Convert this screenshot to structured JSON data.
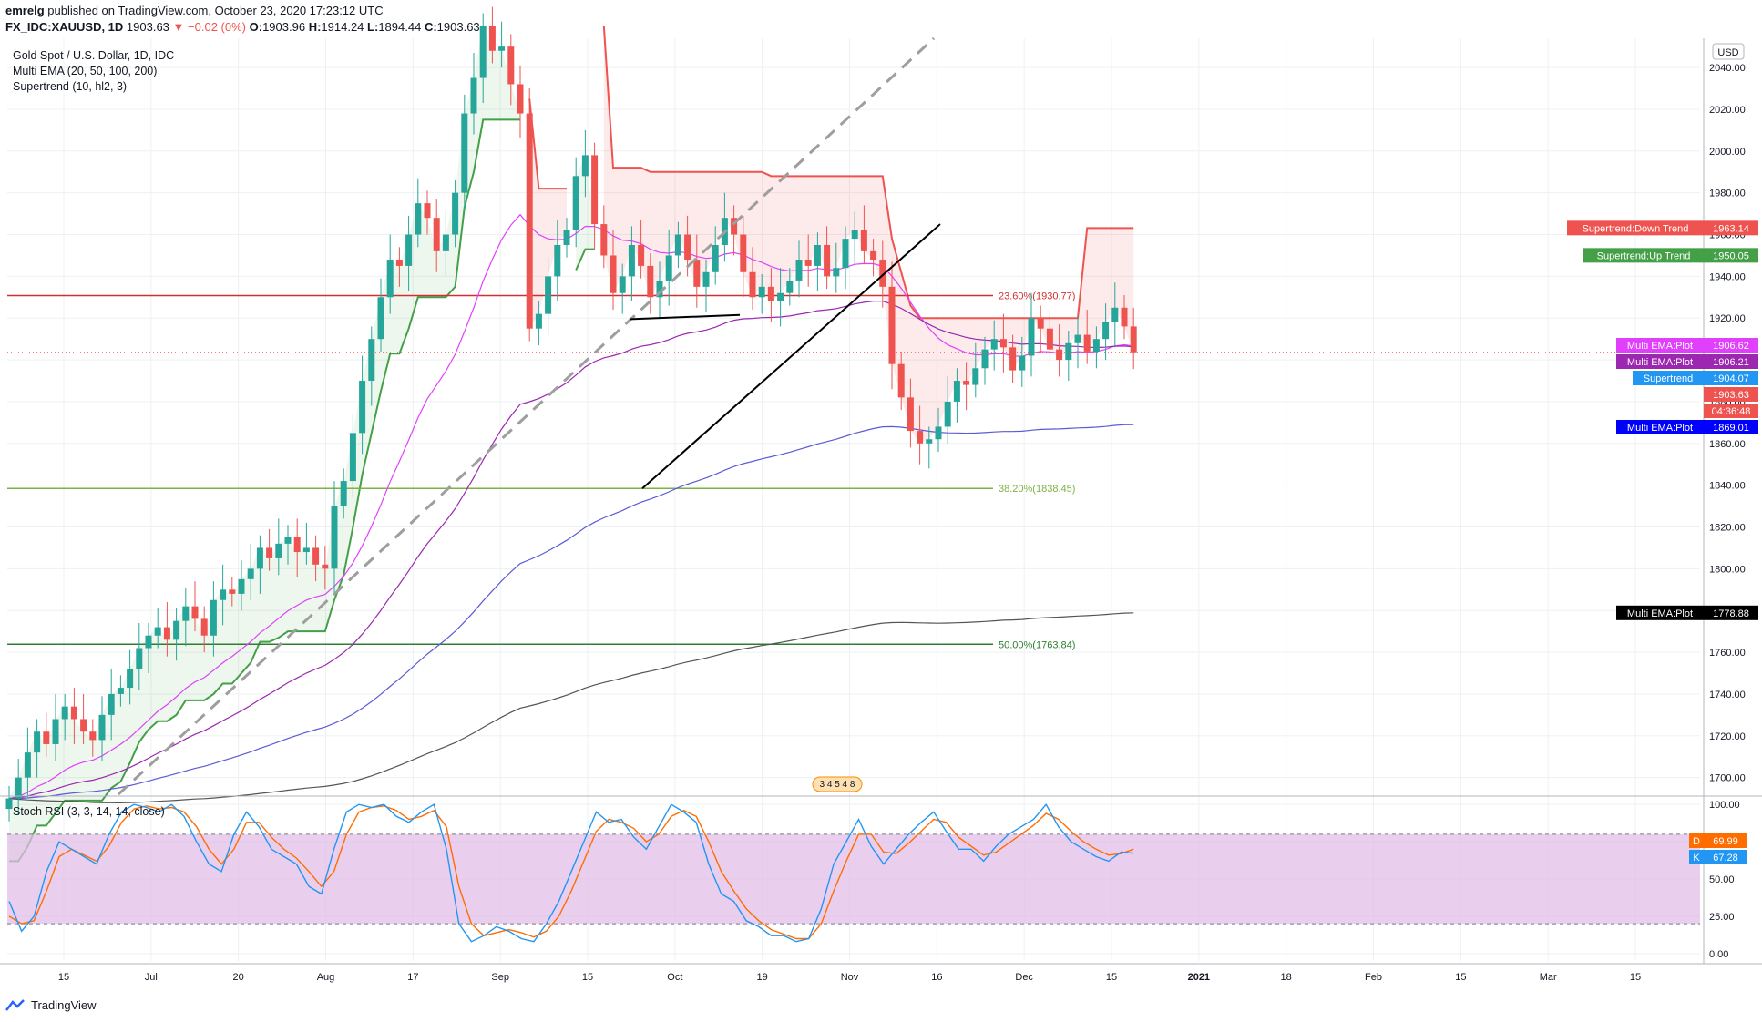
{
  "header": {
    "line1_user": "emrelg",
    "line1_text": "published on TradingView.com, October 23, 2020 17:23:12 UTC",
    "symbol": "FX_IDC:XAUUSD, 1D",
    "open": "1903.63",
    "change": "▼ −0.02 (0%)",
    "o": "1903.96",
    "h": "1914.24",
    "l": "1894.44",
    "c": "1903.63"
  },
  "legend": {
    "title": "Gold Spot / U.S. Dollar, 1D, IDC",
    "ema": "Multi EMA (20, 50, 100, 200)",
    "supertrend": "Supertrend (10, hl2, 3)",
    "stoch": "Stoch RSI (3, 3, 14, 14, close)"
  },
  "footer": {
    "brand": "TradingView"
  },
  "colors": {
    "up": "#26a69a",
    "down": "#ef5350",
    "ema20": "#e040fb",
    "ema50": "#9c27b0",
    "ema100": "#5b5bd6",
    "ema200": "#555555",
    "st_up": "#43a047",
    "st_down": "#ef5350",
    "fib236": "#d32f2f",
    "fib382": "#7cb342",
    "fib50": "#2e7d32",
    "stoch_k": "#2196f3",
    "stoch_d": "#ff6d00",
    "stoch_band": "#e1bee7"
  },
  "chart_data": [
    {
      "type": "candlestick",
      "title": "Gold Spot / U.S. Dollar, 1D, IDC",
      "currency": "USD",
      "ylim": [
        1692,
        2054
      ],
      "y_ticks": [
        1700,
        1720,
        1740,
        1760,
        1780,
        1800,
        1820,
        1840,
        1860,
        1880,
        1900,
        1920,
        1940,
        1960,
        1980,
        2000,
        2020,
        2040
      ],
      "x_ticks": [
        "15",
        "Jul",
        "20",
        "Aug",
        "17",
        "Sep",
        "15",
        "Oct",
        "19",
        "Nov",
        "16",
        "Dec",
        "15",
        "2021",
        "18",
        "Feb",
        "15",
        "Mar",
        "15"
      ],
      "close": [
        1690,
        1700,
        1712,
        1722,
        1716,
        1728,
        1734,
        1728,
        1722,
        1718,
        1730,
        1740,
        1743,
        1752,
        1762,
        1768,
        1772,
        1766,
        1775,
        1782,
        1776,
        1768,
        1785,
        1790,
        1788,
        1795,
        1800,
        1810,
        1805,
        1812,
        1815,
        1808,
        1810,
        1802,
        1800,
        1830,
        1842,
        1865,
        1890,
        1910,
        1930,
        1948,
        1945,
        1960,
        1975,
        1968,
        1952,
        1960,
        1980,
        2018,
        2035,
        2060,
        2048,
        2050,
        2032,
        2018,
        1915,
        1922,
        1940,
        1955,
        1962,
        1988,
        1998,
        1965,
        1950,
        1932,
        1940,
        1955,
        1945,
        1930,
        1938,
        1950,
        1960,
        1948,
        1935,
        1942,
        1955,
        1968,
        1960,
        1942,
        1930,
        1935,
        1928,
        1932,
        1938,
        1948,
        1945,
        1955,
        1940,
        1944,
        1958,
        1962,
        1952,
        1948,
        1935,
        1898,
        1882,
        1866,
        1860,
        1862,
        1868,
        1880,
        1890,
        1888,
        1896,
        1905,
        1910,
        1906,
        1895,
        1902,
        1920,
        1915,
        1905,
        1900,
        1908,
        1912,
        1904,
        1910,
        1918,
        1925,
        1916,
        1903.63
      ],
      "supertrend_up_last": 1950.05,
      "supertrend_down_last": 1963.14,
      "supertrend_last": 1904.07,
      "last_price": 1903.63,
      "countdown": "04:36:48",
      "ema_last": [
        {
          "name": "Multi EMA:Plot",
          "value": 1906.62
        },
        {
          "name": "Multi EMA:Plot",
          "value": 1906.21
        },
        {
          "name": "Multi EMA:Plot",
          "value": 1869.01
        },
        {
          "name": "Multi EMA:Plot",
          "value": 1778.88
        }
      ],
      "labels": {
        "st_down": "Supertrend:Down Trend",
        "st_up": "Supertrend:Up Trend",
        "st": "Supertrend",
        "ema": "Multi EMA:Plot"
      },
      "fib": [
        {
          "label": "23.60%(1930.77)",
          "value": 1930.77
        },
        {
          "label": "38.20%(1838.45)",
          "value": 1838.45
        },
        {
          "label": "50.00%(1763.84)",
          "value": 1763.84
        }
      ],
      "badge": "3 4 5 4 8"
    },
    {
      "type": "line",
      "title": "Stoch RSI (3, 3, 14, 14, close)",
      "ylim": [
        -5,
        105
      ],
      "y_ticks": [
        0,
        25,
        50,
        75,
        100
      ],
      "bands": [
        20,
        80
      ],
      "k_last": 67.28,
      "d_last": 69.99,
      "k_label": "K",
      "d_label": "D",
      "k": [
        35,
        15,
        25,
        55,
        75,
        70,
        65,
        60,
        80,
        95,
        100,
        98,
        95,
        100,
        92,
        75,
        60,
        55,
        80,
        95,
        85,
        70,
        65,
        60,
        45,
        40,
        70,
        95,
        100,
        98,
        100,
        92,
        88,
        95,
        100,
        70,
        20,
        8,
        12,
        18,
        15,
        10,
        8,
        20,
        35,
        55,
        75,
        95,
        88,
        90,
        78,
        70,
        85,
        100,
        95,
        88,
        60,
        40,
        35,
        22,
        18,
        12,
        12,
        8,
        10,
        30,
        60,
        75,
        90,
        72,
        60,
        70,
        80,
        88,
        95,
        82,
        70,
        70,
        62,
        72,
        80,
        85,
        90,
        100,
        85,
        75,
        70,
        65,
        62,
        68,
        67.28
      ],
      "d": [
        25,
        20,
        22,
        42,
        65,
        70,
        66,
        62,
        72,
        88,
        97,
        99,
        97,
        98,
        95,
        85,
        70,
        60,
        70,
        88,
        88,
        78,
        70,
        64,
        55,
        45,
        55,
        80,
        95,
        98,
        99,
        96,
        90,
        92,
        96,
        85,
        45,
        20,
        12,
        14,
        16,
        14,
        11,
        15,
        25,
        42,
        62,
        82,
        90,
        88,
        84,
        75,
        80,
        92,
        96,
        92,
        75,
        55,
        42,
        30,
        22,
        16,
        13,
        10,
        10,
        20,
        42,
        62,
        80,
        80,
        68,
        67,
        74,
        82,
        90,
        88,
        78,
        72,
        66,
        68,
        74,
        80,
        86,
        94,
        90,
        82,
        75,
        70,
        66,
        67,
        69.99
      ]
    }
  ]
}
